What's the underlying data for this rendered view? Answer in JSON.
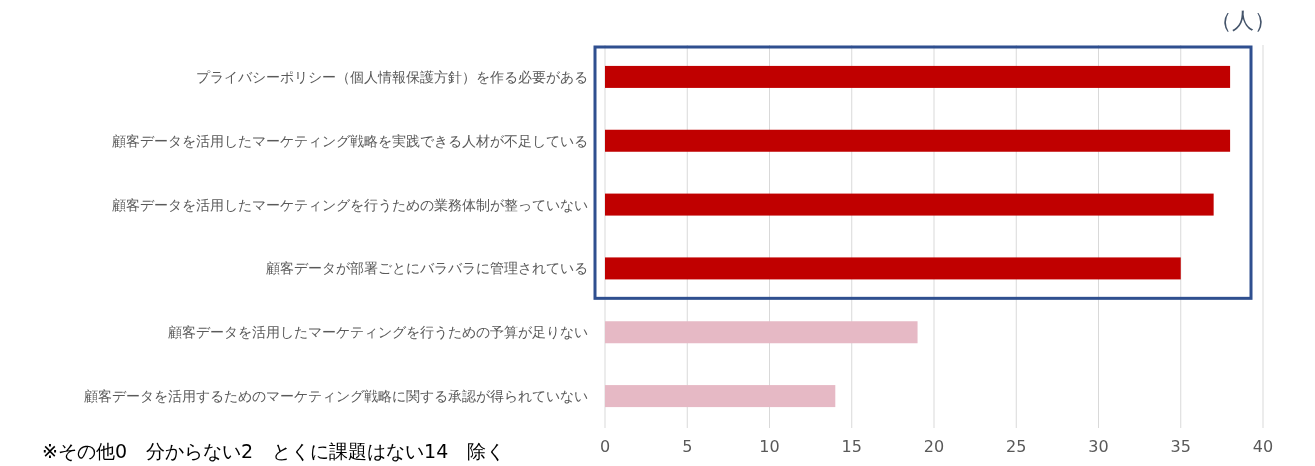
{
  "chart_data": {
    "type": "bar",
    "orientation": "horizontal",
    "categories": [
      "プライバシーポリシー（個人情報保護方針）を作る必要がある",
      "顧客データを活用したマーケティング戦略を実践できる人材が不足している",
      "顧客データを活用したマーケティングを行うための業務体制が整っていない",
      "顧客データが部署ごとにバラバラに管理されている",
      "顧客データを活用したマーケティングを行うための予算が足りない",
      "顧客データを活用するためのマーケティング戦略に関する承認が得られていない"
    ],
    "values": [
      38,
      38,
      37,
      35,
      19,
      14
    ],
    "colors": [
      "#c00000",
      "#c00000",
      "#c00000",
      "#c00000",
      "#e6b9c5",
      "#e6b9c5"
    ],
    "xlim": [
      0,
      40
    ],
    "xticks": [
      0,
      5,
      10,
      15,
      20,
      25,
      30,
      35,
      40
    ],
    "grid": "x",
    "xlabel": "（人）",
    "annotations": [
      "※その他0　分からない2　とくに課題はない14　除く"
    ]
  }
}
